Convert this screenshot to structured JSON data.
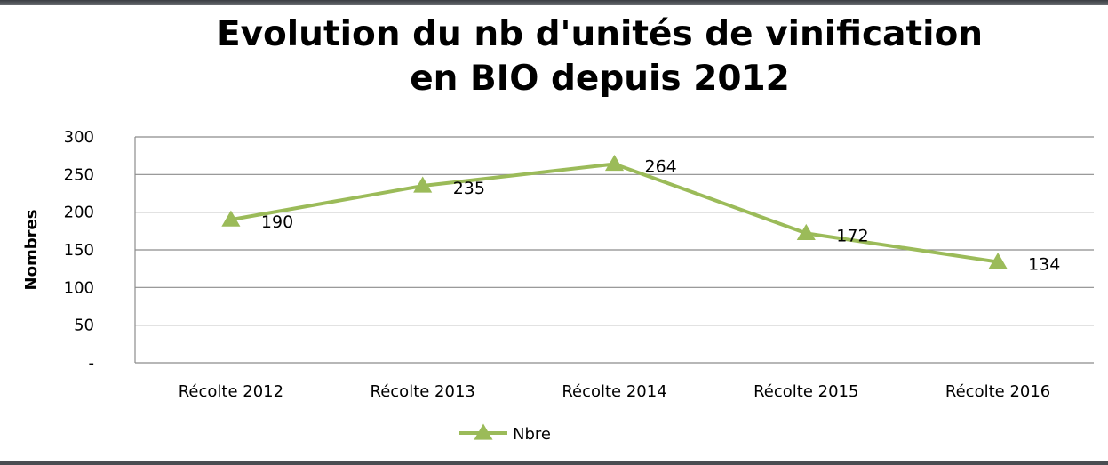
{
  "title_line1": "Evolution du nb d'unités de vinification",
  "title_line2": "en BIO depuis 2012",
  "colors": {
    "series": "#9bbb59",
    "grid": "#8c8c8c",
    "axis": "#8c8c8c"
  },
  "chart_data": {
    "type": "line",
    "title": "Evolution du nb d'unités de vinification en BIO depuis 2012",
    "xlabel": "",
    "ylabel": "Nombres",
    "categories": [
      "Récolte 2012",
      "Récolte 2013",
      "Récolte 2014",
      "Récolte 2015",
      "Récolte 2016"
    ],
    "series": [
      {
        "name": "Nbre",
        "values": [
          190,
          235,
          264,
          172,
          134
        ],
        "marker": "triangle"
      }
    ],
    "ylim": [
      0,
      300
    ],
    "yticks": [
      0,
      50,
      100,
      150,
      200,
      250,
      300
    ],
    "ytick_labels": [
      "-",
      "50",
      "100",
      "150",
      "200",
      "250",
      "300"
    ],
    "data_labels": [
      "190",
      "235",
      "264",
      "172",
      "134"
    ],
    "grid": true,
    "legend_position": "bottom"
  }
}
